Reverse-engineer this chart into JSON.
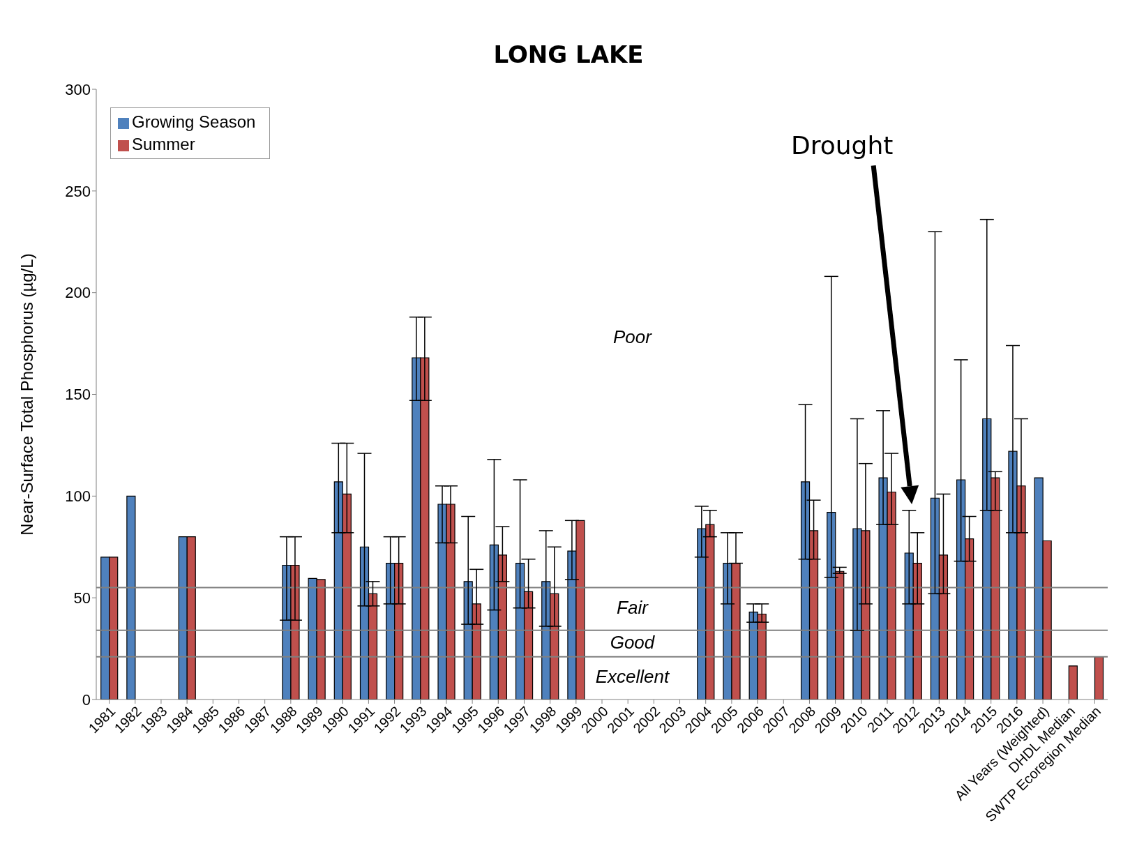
{
  "chart_data": {
    "type": "bar",
    "title": "LONG LAKE",
    "ylabel": "Near-Surface Total Phosphorus (µg/L)",
    "categories": [
      "1981",
      "1982",
      "1983",
      "1984",
      "1985",
      "1986",
      "1987",
      "1988",
      "1989",
      "1990",
      "1991",
      "1992",
      "1993",
      "1994",
      "1995",
      "1996",
      "1997",
      "1998",
      "1999",
      "2000",
      "2001",
      "2002",
      "2003",
      "2004",
      "2005",
      "2006",
      "2007",
      "2008",
      "2009",
      "2010",
      "2011",
      "2012",
      "2013",
      "2014",
      "2015",
      "2016",
      "All Years (Weighted)",
      "DHDL Median",
      "SWTP Ecoregion Median"
    ],
    "series": [
      {
        "name": "Growing Season",
        "color": "#4f81bd",
        "values": [
          70,
          100,
          null,
          80,
          null,
          null,
          null,
          66,
          59.5,
          107,
          75,
          67,
          168,
          96,
          58,
          76,
          67,
          58,
          73,
          null,
          null,
          null,
          null,
          84,
          67,
          43,
          null,
          107,
          92,
          84,
          109,
          72,
          99,
          108,
          138,
          122,
          109,
          null,
          null
        ],
        "errors": [
          null,
          null,
          null,
          null,
          null,
          null,
          null,
          [
            39,
            80
          ],
          null,
          [
            82,
            126
          ],
          [
            46,
            121
          ],
          [
            47,
            80
          ],
          [
            147,
            188
          ],
          [
            77,
            105
          ],
          [
            37,
            90
          ],
          [
            44,
            118
          ],
          [
            45,
            108
          ],
          [
            36,
            83
          ],
          [
            59,
            88
          ],
          null,
          null,
          null,
          null,
          [
            70,
            95
          ],
          [
            47,
            82
          ],
          [
            38,
            47
          ],
          null,
          [
            69,
            145
          ],
          [
            60,
            208
          ],
          [
            34,
            138
          ],
          [
            86,
            142
          ],
          [
            47,
            93
          ],
          [
            52,
            230
          ],
          [
            68,
            167
          ],
          [
            93,
            236
          ],
          [
            82,
            174
          ],
          null,
          null,
          null
        ]
      },
      {
        "name": "Summer",
        "color": "#c0504d",
        "values": [
          70,
          null,
          null,
          80,
          null,
          null,
          null,
          66,
          59,
          101,
          52,
          67,
          168,
          96,
          47,
          71,
          53,
          52,
          88,
          null,
          null,
          null,
          null,
          86,
          67,
          42,
          null,
          83,
          63,
          83,
          102,
          67,
          71,
          79,
          109,
          105,
          78,
          16.5,
          21
        ],
        "errors": [
          null,
          null,
          null,
          null,
          null,
          null,
          null,
          [
            39,
            80
          ],
          null,
          [
            82,
            126
          ],
          [
            46,
            58
          ],
          [
            47,
            80
          ],
          [
            147,
            188
          ],
          [
            77,
            105
          ],
          [
            37,
            64
          ],
          [
            58,
            85
          ],
          [
            45,
            69
          ],
          [
            36,
            75
          ],
          null,
          null,
          null,
          null,
          null,
          [
            80,
            93
          ],
          [
            67,
            82
          ],
          [
            38,
            47
          ],
          null,
          [
            69,
            98
          ],
          [
            62,
            65
          ],
          [
            47,
            116
          ],
          [
            86,
            121
          ],
          [
            47,
            82
          ],
          [
            52,
            101
          ],
          [
            68,
            90
          ],
          [
            93,
            112
          ],
          [
            82,
            138
          ],
          null,
          null,
          null
        ]
      }
    ],
    "ylim": [
      0,
      300
    ],
    "yticks": [
      0,
      50,
      100,
      150,
      200,
      250,
      300
    ],
    "grid": false,
    "legend": "top left",
    "ref_lines": [
      {
        "axis": "y",
        "value": 55,
        "color": "#808080"
      },
      {
        "axis": "y",
        "value": 34,
        "color": "#808080"
      },
      {
        "axis": "y",
        "value": 21,
        "color": "#808080"
      }
    ],
    "annotations": [
      "Poor",
      "Fair",
      "Good",
      "Excellent",
      "Drought"
    ]
  }
}
